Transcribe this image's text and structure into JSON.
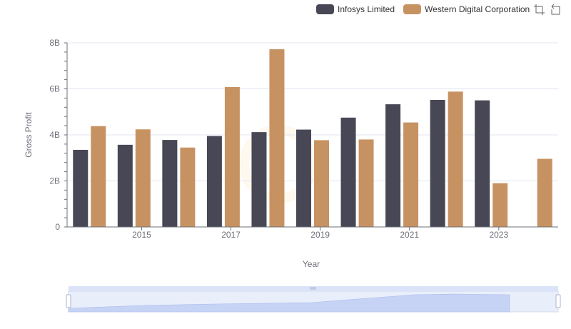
{
  "chart_data": {
    "type": "bar",
    "categories": [
      "2014",
      "2015",
      "2016",
      "2017",
      "2018",
      "2019",
      "2020",
      "2021",
      "2022",
      "2023",
      "2024"
    ],
    "x_tick_labels": [
      "2015",
      "2017",
      "2019",
      "2021",
      "2023"
    ],
    "series": [
      {
        "name": "Infosys Limited",
        "color": "#474755",
        "values": [
          3.35,
          3.57,
          3.78,
          3.95,
          4.12,
          4.23,
          4.75,
          5.33,
          5.52,
          5.5,
          null
        ]
      },
      {
        "name": "Western Digital Corporation",
        "color": "#c79262",
        "values": [
          4.38,
          4.24,
          3.45,
          6.08,
          7.72,
          3.77,
          3.8,
          4.54,
          5.88,
          1.9,
          2.96
        ]
      }
    ],
    "ylim": [
      0,
      8
    ],
    "y_ticks": [
      0,
      2,
      4,
      6,
      8
    ],
    "y_tick_labels": [
      "0",
      "2B",
      "4B",
      "6B",
      "8B"
    ],
    "xlabel": "Year",
    "ylabel": "Gross Profit",
    "legend_position": "top-right",
    "grid": true
  },
  "toolbox": {
    "zoom_icon": "zoom-area-icon",
    "restore_icon": "restore-icon"
  }
}
